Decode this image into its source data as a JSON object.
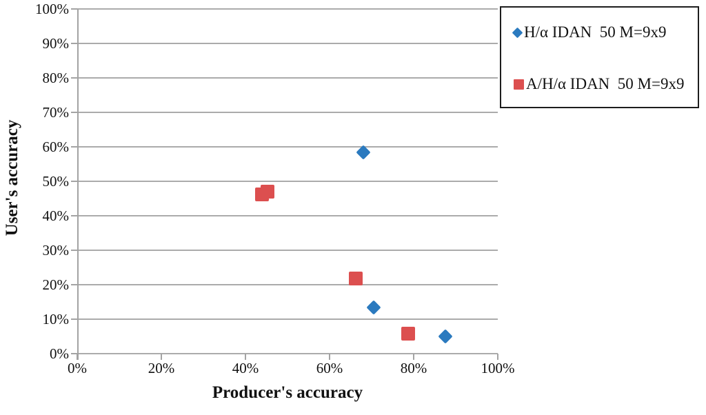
{
  "figure": {
    "background": "#ffffff",
    "gridline_color": "#ababab",
    "axis_color": "#a3a3a3",
    "text_color": "#111111",
    "legend_border_color": "#1c1c1c"
  },
  "chart_data": {
    "type": "scatter",
    "title": "",
    "xlabel": "Producer's accuracy",
    "ylabel": "User's accuracy",
    "xlim": [
      0,
      100
    ],
    "ylim": [
      0,
      100
    ],
    "grid": "horizontal-only",
    "legend_position": "outside-top-right",
    "x_ticks": [
      {
        "value": 0,
        "label": "0%"
      },
      {
        "value": 20,
        "label": "20%"
      },
      {
        "value": 40,
        "label": "40%"
      },
      {
        "value": 60,
        "label": "60%"
      },
      {
        "value": 80,
        "label": "80%"
      },
      {
        "value": 100,
        "label": "100%"
      }
    ],
    "y_ticks": [
      {
        "value": 0,
        "label": "0%"
      },
      {
        "value": 10,
        "label": "10%"
      },
      {
        "value": 20,
        "label": "20%"
      },
      {
        "value": 30,
        "label": "30%"
      },
      {
        "value": 40,
        "label": "40%"
      },
      {
        "value": 50,
        "label": "50%"
      },
      {
        "value": 60,
        "label": "60%"
      },
      {
        "value": 70,
        "label": "70%"
      },
      {
        "value": 80,
        "label": "80%"
      },
      {
        "value": 90,
        "label": "90%"
      },
      {
        "value": 100,
        "label": "100%"
      }
    ],
    "series": [
      {
        "name": "H/α IDAN  50 M=9x9",
        "marker": "diamond",
        "color": "#2b7abf",
        "points": [
          [
            68,
            58.5
          ],
          [
            70.5,
            13.5
          ],
          [
            87.5,
            5
          ]
        ]
      },
      {
        "name": "A/H/α IDAN  50 M=9x9",
        "marker": "square",
        "color": "#dc4f4f",
        "points": [
          [
            44,
            46.3
          ],
          [
            45.3,
            47
          ],
          [
            66.3,
            21.8
          ],
          [
            78.7,
            5.8
          ]
        ]
      }
    ]
  }
}
